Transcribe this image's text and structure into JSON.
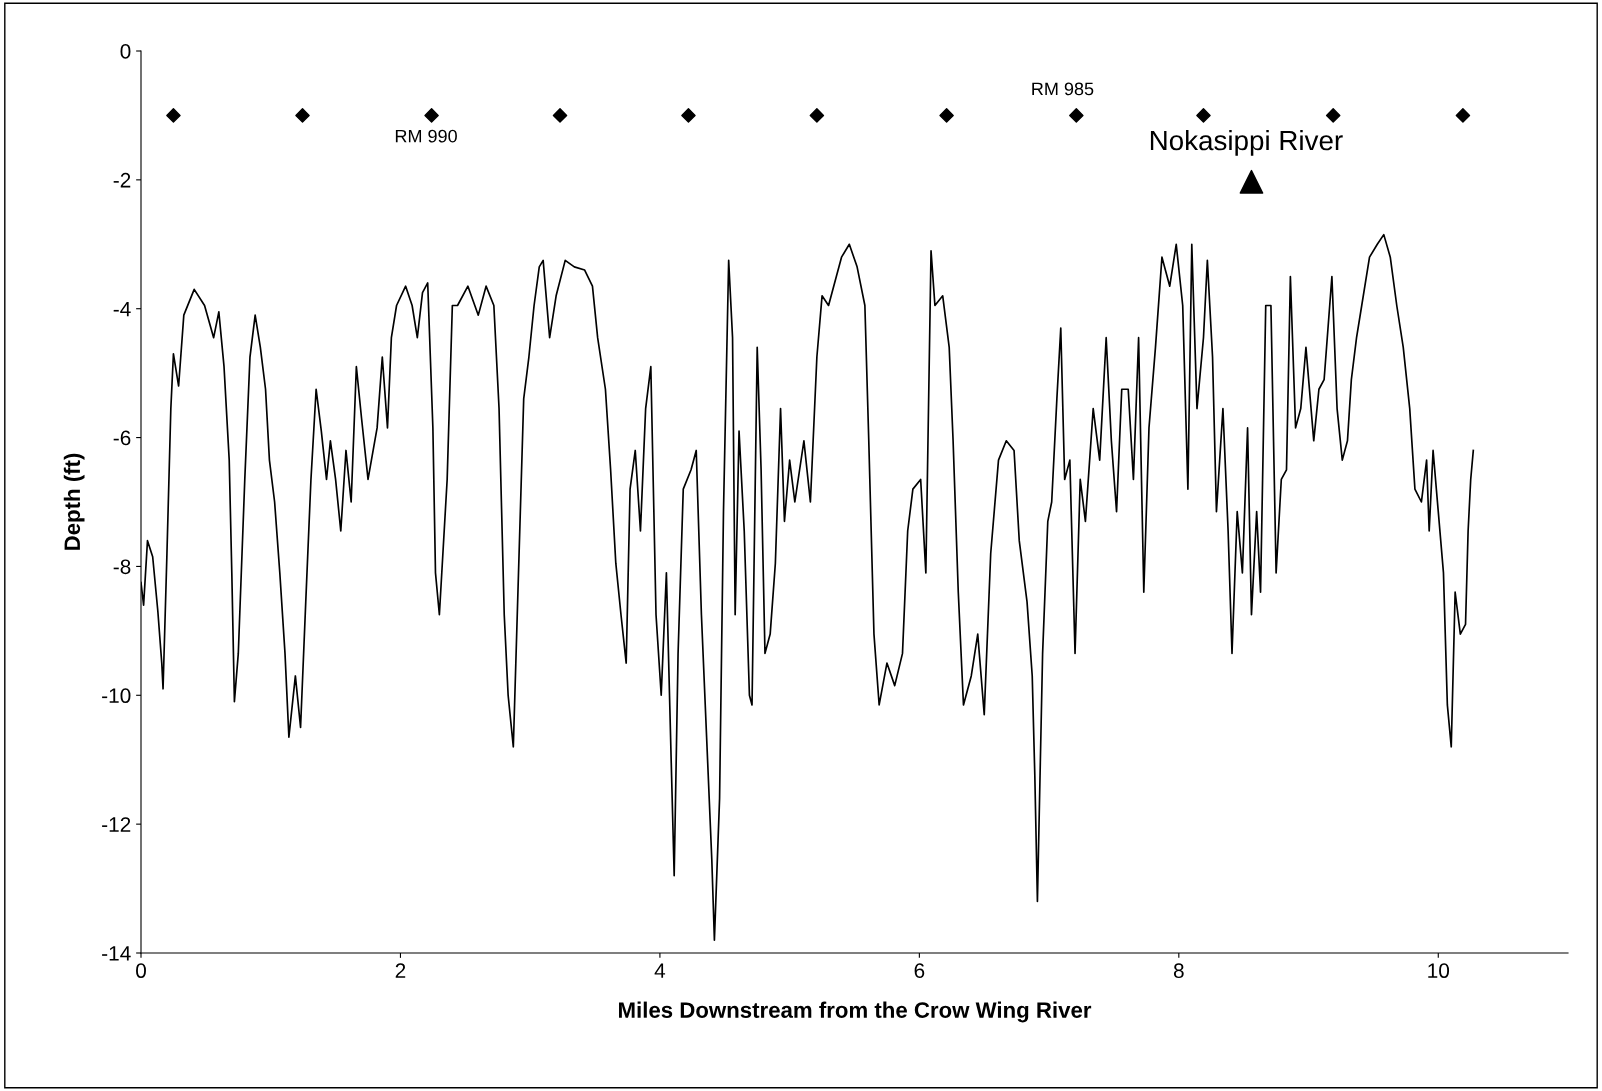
{
  "chart_data": {
    "type": "line",
    "xlabel": "Miles Downstream from the Crow Wing River",
    "ylabel": "Depth (ft)",
    "xlim": [
      0,
      11
    ],
    "xticks": [
      0,
      2,
      4,
      6,
      8,
      10
    ],
    "ylim": [
      -14,
      0
    ],
    "yticks": [
      -14,
      -12,
      -10,
      -8,
      -6,
      -4,
      -2,
      0
    ],
    "grid": false,
    "legend": false,
    "series": [
      {
        "color": "#000000",
        "marker": "none",
        "line_style": "solid",
        "x": [
          0,
          0.02,
          0.05,
          0.09,
          0.13,
          0.16,
          0.17,
          0.2,
          0.23,
          0.25,
          0.29,
          0.33,
          0.41,
          0.49,
          0.56,
          0.6,
          0.64,
          0.68,
          0.7,
          0.72,
          0.75,
          0.8,
          0.84,
          0.88,
          0.92,
          0.96,
          0.99,
          1.03,
          1.07,
          1.11,
          1.14,
          1.19,
          1.23,
          1.27,
          1.31,
          1.35,
          1.39,
          1.43,
          1.46,
          1.5,
          1.54,
          1.58,
          1.62,
          1.66,
          1.7,
          1.75,
          1.82,
          1.86,
          1.9,
          1.93,
          1.97,
          2.04,
          2.09,
          2.13,
          2.17,
          2.21,
          2.25,
          2.27,
          2.3,
          2.36,
          2.4,
          2.44,
          2.52,
          2.6,
          2.66,
          2.72,
          2.76,
          2.8,
          2.83,
          2.87,
          2.91,
          2.95,
          2.99,
          3.03,
          3.07,
          3.1,
          3.15,
          3.2,
          3.27,
          3.34,
          3.42,
          3.48,
          3.52,
          3.58,
          3.62,
          3.66,
          3.7,
          3.74,
          3.77,
          3.81,
          3.85,
          3.89,
          3.93,
          3.97,
          4.01,
          4.05,
          4.09,
          4.11,
          4.14,
          4.18,
          4.24,
          4.28,
          4.32,
          4.36,
          4.4,
          4.42,
          4.46,
          4.49,
          4.53,
          4.56,
          4.58,
          4.61,
          4.65,
          4.69,
          4.71,
          4.75,
          4.78,
          4.81,
          4.85,
          4.89,
          4.93,
          4.96,
          5.0,
          5.04,
          5.11,
          5.16,
          5.21,
          5.25,
          5.3,
          5.36,
          5.4,
          5.46,
          5.52,
          5.58,
          5.61,
          5.65,
          5.69,
          5.75,
          5.81,
          5.87,
          5.91,
          5.95,
          6.01,
          6.05,
          6.09,
          6.12,
          6.18,
          6.23,
          6.26,
          6.3,
          6.34,
          6.4,
          6.45,
          6.5,
          6.55,
          6.61,
          6.67,
          6.73,
          6.77,
          6.83,
          6.87,
          6.89,
          6.91,
          6.95,
          6.99,
          7.02,
          7.06,
          7.09,
          7.12,
          7.16,
          7.2,
          7.24,
          7.28,
          7.34,
          7.39,
          7.44,
          7.48,
          7.52,
          7.56,
          7.61,
          7.65,
          7.69,
          7.73,
          7.77,
          7.82,
          7.87,
          7.93,
          7.98,
          8.03,
          8.07,
          8.1,
          8.14,
          8.19,
          8.22,
          8.26,
          8.29,
          8.34,
          8.38,
          8.41,
          8.45,
          8.49,
          8.53,
          8.56,
          8.6,
          8.63,
          8.67,
          8.71,
          8.75,
          8.79,
          8.83,
          8.86,
          8.9,
          8.94,
          8.98,
          9.04,
          9.08,
          9.12,
          9.18,
          9.22,
          9.26,
          9.3,
          9.33,
          9.37,
          9.41,
          9.47,
          9.53,
          9.58,
          9.63,
          9.68,
          9.73,
          9.78,
          9.82,
          9.87,
          9.91,
          9.93,
          9.96,
          10.0,
          10.04,
          10.07,
          10.1,
          10.13,
          10.17,
          10.21,
          10.23,
          10.25,
          10.27
        ],
        "values": [
          -8.25,
          -8.6,
          -7.6,
          -7.85,
          -8.7,
          -9.5,
          -9.9,
          -7.8,
          -5.55,
          -4.7,
          -5.2,
          -4.1,
          -3.7,
          -3.95,
          -4.45,
          -4.05,
          -4.9,
          -6.35,
          -8.1,
          -10.1,
          -9.35,
          -6.65,
          -4.75,
          -4.1,
          -4.6,
          -5.25,
          -6.35,
          -7.0,
          -8.1,
          -9.35,
          -10.65,
          -9.7,
          -10.5,
          -8.55,
          -6.65,
          -5.25,
          -5.9,
          -6.65,
          -6.05,
          -6.65,
          -7.45,
          -6.2,
          -7.0,
          -4.9,
          -5.7,
          -6.65,
          -5.85,
          -4.75,
          -5.85,
          -4.45,
          -3.95,
          -3.65,
          -3.95,
          -4.45,
          -3.75,
          -3.6,
          -5.85,
          -8.1,
          -8.75,
          -6.65,
          -3.95,
          -3.95,
          -3.65,
          -4.1,
          -3.65,
          -3.95,
          -5.55,
          -8.75,
          -10.0,
          -10.8,
          -8.1,
          -5.4,
          -4.75,
          -3.95,
          -3.35,
          -3.25,
          -4.45,
          -3.8,
          -3.25,
          -3.35,
          -3.4,
          -3.65,
          -4.45,
          -5.25,
          -6.5,
          -7.95,
          -8.75,
          -9.5,
          -6.8,
          -6.2,
          -7.45,
          -5.55,
          -4.9,
          -8.75,
          -10.0,
          -8.1,
          -11.25,
          -12.8,
          -9.35,
          -6.8,
          -6.5,
          -6.2,
          -8.75,
          -10.65,
          -12.55,
          -13.8,
          -11.6,
          -7.15,
          -3.25,
          -4.45,
          -8.75,
          -5.9,
          -7.45,
          -10.0,
          -10.15,
          -4.6,
          -6.5,
          -9.35,
          -9.05,
          -7.95,
          -5.55,
          -7.3,
          -6.35,
          -7.0,
          -6.05,
          -7.0,
          -4.75,
          -3.8,
          -3.95,
          -3.5,
          -3.2,
          -3.0,
          -3.35,
          -3.95,
          -6.05,
          -9.05,
          -10.15,
          -9.5,
          -9.85,
          -9.35,
          -7.45,
          -6.8,
          -6.65,
          -8.1,
          -3.1,
          -3.95,
          -3.8,
          -4.6,
          -6.05,
          -8.4,
          -10.15,
          -9.7,
          -9.05,
          -10.3,
          -7.8,
          -6.35,
          -6.05,
          -6.2,
          -7.6,
          -8.55,
          -9.7,
          -11.25,
          -13.2,
          -9.35,
          -7.3,
          -7.0,
          -5.4,
          -4.3,
          -6.65,
          -6.35,
          -9.35,
          -6.65,
          -7.3,
          -5.55,
          -6.35,
          -4.45,
          -6.05,
          -7.15,
          -5.25,
          -5.25,
          -6.65,
          -4.45,
          -8.4,
          -5.85,
          -4.6,
          -3.2,
          -3.65,
          -3.0,
          -3.95,
          -6.8,
          -3.0,
          -5.55,
          -4.45,
          -3.25,
          -4.75,
          -7.15,
          -5.55,
          -7.45,
          -9.35,
          -7.15,
          -8.1,
          -5.85,
          -8.75,
          -7.15,
          -8.4,
          -3.95,
          -3.95,
          -8.1,
          -6.65,
          -6.5,
          -3.5,
          -5.85,
          -5.55,
          -4.6,
          -6.05,
          -5.25,
          -5.1,
          -3.5,
          -5.55,
          -6.35,
          -6.05,
          -5.1,
          -4.45,
          -3.95,
          -3.2,
          -3.0,
          -2.85,
          -3.2,
          -3.95,
          -4.6,
          -5.55,
          -6.8,
          -7.0,
          -6.35,
          -7.45,
          -6.2,
          -7.15,
          -8.1,
          -10.15,
          -10.8,
          -8.4,
          -9.05,
          -8.9,
          -7.45,
          -6.65,
          -6.2
        ]
      },
      {
        "type": "scatter",
        "color": "#000000",
        "marker": "diamond",
        "x": [
          0.25,
          1.245,
          2.24,
          3.23,
          4.22,
          5.21,
          6.21,
          7.21,
          8.19,
          9.19,
          10.19
        ],
        "values": [
          -1,
          -1,
          -1,
          -1,
          -1,
          -1,
          -1,
          -1,
          -1,
          -1,
          -1
        ]
      },
      {
        "type": "scatter",
        "color": "#000000",
        "marker": "triangle",
        "x": [
          8.56
        ],
        "values": [
          -2.03
        ]
      }
    ],
    "annotations": [
      {
        "text": "RM 990",
        "x": 2.24,
        "y": -1
      },
      {
        "text": "RM 985",
        "x": 7.21,
        "y": -1
      },
      {
        "text": "Nokasippi River",
        "x": 8.56,
        "y": -2.03
      }
    ]
  }
}
